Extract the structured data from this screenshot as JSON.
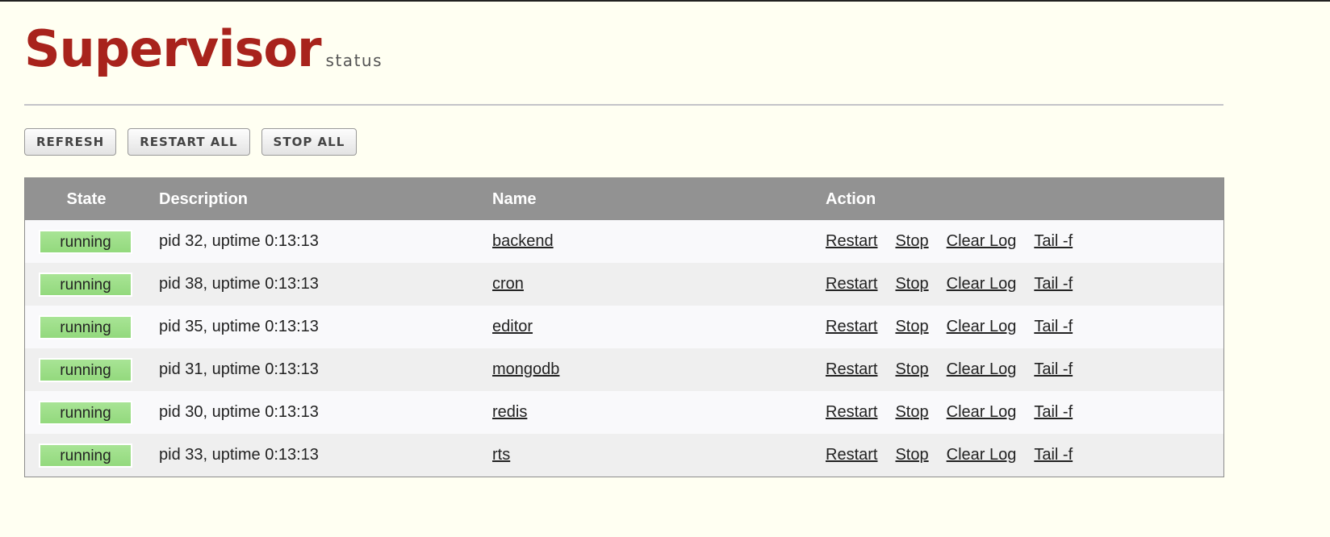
{
  "header": {
    "title": "Supervisor",
    "subtitle": "status"
  },
  "toolbar": {
    "refresh": "REFRESH",
    "restart_all": "RESTART ALL",
    "stop_all": "STOP ALL"
  },
  "table": {
    "columns": [
      "State",
      "Description",
      "Name",
      "Action"
    ],
    "actions": [
      "Restart",
      "Stop",
      "Clear Log",
      "Tail -f"
    ],
    "rows": [
      {
        "state": "running",
        "description": "pid 32, uptime 0:13:13",
        "name": "backend"
      },
      {
        "state": "running",
        "description": "pid 38, uptime 0:13:13",
        "name": "cron"
      },
      {
        "state": "running",
        "description": "pid 35, uptime 0:13:13",
        "name": "editor"
      },
      {
        "state": "running",
        "description": "pid 31, uptime 0:13:13",
        "name": "mongodb"
      },
      {
        "state": "running",
        "description": "pid 30, uptime 0:13:13",
        "name": "redis"
      },
      {
        "state": "running",
        "description": "pid 33, uptime 0:13:13",
        "name": "rts"
      }
    ]
  },
  "colors": {
    "brand": "#a8231c",
    "running": "#a3e08f",
    "header_bg": "#929292",
    "page_bg": "#fffff2"
  }
}
